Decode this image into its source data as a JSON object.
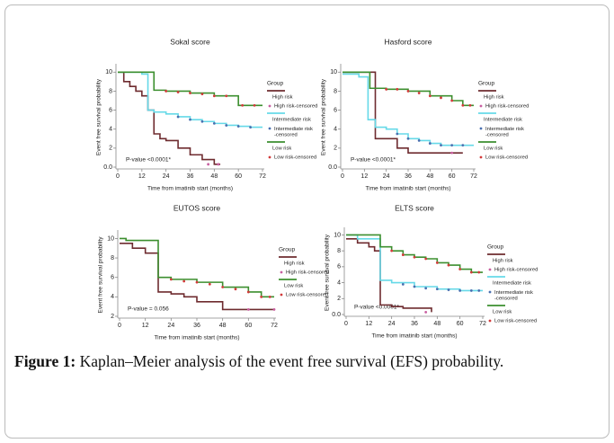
{
  "chart_data": [
    {
      "type": "line",
      "title": "Sokal score",
      "x_label": "Time from imatinib start (months)",
      "y_label": "Event free survival probability",
      "annotation": "P-value   <0.0001*",
      "legend_title": "Group",
      "xlim": [
        0,
        72
      ],
      "xticks": [
        0,
        12,
        24,
        36,
        48,
        60,
        72
      ],
      "ylim": [
        0,
        10.5
      ],
      "yticks": [
        {
          "value": 0,
          "label": "0.0"
        },
        2,
        4,
        6,
        8,
        10
      ],
      "series": [
        {
          "name": "High risk",
          "style": "step",
          "color": "#6e2b2f",
          "x": [
            0,
            3,
            6,
            9,
            12,
            15,
            18,
            21,
            24,
            30,
            36,
            42,
            48,
            51
          ],
          "values": [
            10,
            9,
            8.5,
            8,
            7.5,
            6,
            3.5,
            3,
            2.8,
            2,
            1.3,
            0.8,
            0.3,
            0.3
          ]
        },
        {
          "name": "High risk-censored",
          "style": "points",
          "color": "#c85ea0",
          "x": [
            45,
            50
          ],
          "values": [
            0.3,
            0.3
          ]
        },
        {
          "name": "Intermediate risk",
          "style": "step",
          "color": "#66d9e8",
          "x": [
            0,
            12,
            15,
            18,
            24,
            30,
            36,
            42,
            48,
            54,
            60,
            66,
            72
          ],
          "values": [
            10,
            9.8,
            6,
            5.8,
            5.6,
            5.3,
            5,
            4.8,
            4.6,
            4.4,
            4.3,
            4.2,
            4.2
          ]
        },
        {
          "name": "Intermediate risk\n-censored",
          "style": "points",
          "color": "#4a6fb0",
          "x": [
            30,
            36,
            42,
            48,
            54,
            60,
            66
          ],
          "values": [
            5.3,
            5,
            4.8,
            4.6,
            4.4,
            4.3,
            4.2
          ]
        },
        {
          "name": "Low risk",
          "style": "step",
          "color": "#3c8f2f",
          "x": [
            0,
            18,
            24,
            36,
            48,
            60,
            72
          ],
          "values": [
            10,
            8.1,
            8,
            7.8,
            7.5,
            6.5,
            6.5
          ]
        },
        {
          "name": "Low risk-censored",
          "style": "points",
          "color": "#d23a3a",
          "x": [
            24,
            30,
            36,
            42,
            48,
            54,
            62,
            68
          ],
          "values": [
            8,
            7.9,
            7.8,
            7.7,
            7.5,
            7.5,
            6.5,
            6.5
          ]
        }
      ]
    },
    {
      "type": "line",
      "title": "Hasford score",
      "x_label": "Time from imatinib start (months)",
      "y_label": "Event free survival probability",
      "annotation": "P-value <0.0001*",
      "legend_title": "Group",
      "xlim": [
        0,
        72
      ],
      "xticks": [
        0,
        12,
        24,
        36,
        48,
        60,
        72
      ],
      "ylim": [
        0,
        10.5
      ],
      "yticks": [
        {
          "value": 0,
          "label": "0.0"
        },
        2,
        4,
        6,
        8,
        10
      ],
      "series": [
        {
          "name": "High risk",
          "style": "step",
          "color": "#6e2b2f",
          "x": [
            0,
            15,
            18,
            24,
            30,
            36,
            66
          ],
          "values": [
            10,
            10,
            3,
            3,
            2,
            1.5,
            1.5
          ]
        },
        {
          "name": "High risk-censored",
          "style": "points",
          "color": "#c85ea0",
          "x": [
            60
          ],
          "values": [
            1.5
          ]
        },
        {
          "name": "Intermediate risk",
          "style": "step",
          "color": "#66d9e8",
          "x": [
            0,
            9,
            14,
            18,
            24,
            30,
            36,
            42,
            48,
            54,
            60,
            72
          ],
          "values": [
            9.8,
            9.5,
            5,
            4.2,
            4,
            3.5,
            3,
            2.8,
            2.5,
            2.3,
            2.3,
            2.3
          ]
        },
        {
          "name": "Intermediate risk\n-censored",
          "style": "points",
          "color": "#4a6fb0",
          "x": [
            30,
            36,
            42,
            48,
            54,
            60,
            66
          ],
          "values": [
            3.5,
            3,
            2.8,
            2.5,
            2.3,
            2.3,
            2.3
          ]
        },
        {
          "name": "Low risk",
          "style": "step",
          "color": "#3c8f2f",
          "x": [
            0,
            15,
            24,
            36,
            48,
            60,
            66,
            72
          ],
          "values": [
            10,
            8.3,
            8.2,
            8,
            7.5,
            7,
            6.5,
            6.5
          ]
        },
        {
          "name": "Low risk-censored",
          "style": "points",
          "color": "#d23a3a",
          "x": [
            24,
            30,
            36,
            42,
            48,
            54,
            60,
            66,
            70
          ],
          "values": [
            8.2,
            8.2,
            8,
            7.8,
            7.5,
            7.3,
            7,
            6.5,
            6.5
          ]
        }
      ]
    },
    {
      "type": "line",
      "title": "EUTOS score",
      "x_label": "Time from imatinib start (months)",
      "y_label": "Event free survival probability",
      "annotation": "P-value = 0.056",
      "legend_title": "Group",
      "xlim": [
        0,
        72
      ],
      "xticks": [
        0,
        12,
        24,
        36,
        48,
        60,
        72
      ],
      "ylim": [
        2,
        10.5
      ],
      "yticks": [
        2,
        4,
        6,
        8,
        10
      ],
      "series": [
        {
          "name": "High risk",
          "style": "step",
          "color": "#6e2b2f",
          "x": [
            0,
            6,
            12,
            18,
            24,
            30,
            36,
            48,
            72
          ],
          "values": [
            9.5,
            9,
            8.5,
            4.5,
            4.3,
            4,
            3.5,
            2.7,
            2.7
          ]
        },
        {
          "name": "High risk-censored",
          "style": "points",
          "color": "#c85ea0",
          "x": [
            60,
            72
          ],
          "values": [
            2.7,
            2.7
          ]
        },
        {
          "name": "Low risk",
          "style": "step",
          "color": "#3c8f2f",
          "x": [
            0,
            3,
            18,
            24,
            36,
            48,
            60,
            66,
            72
          ],
          "values": [
            10,
            9.8,
            6,
            5.8,
            5.5,
            5,
            4.5,
            4,
            4
          ]
        },
        {
          "name": "Low risk-censored",
          "style": "points",
          "color": "#d23a3a",
          "x": [
            24,
            30,
            36,
            42,
            48,
            54,
            60,
            66,
            70
          ],
          "values": [
            5.8,
            5.6,
            5.5,
            5.3,
            5,
            4.8,
            4.5,
            4,
            4
          ]
        }
      ]
    },
    {
      "type": "line",
      "title": "ELTS score",
      "x_label": "Time from imatinib start (months)",
      "y_label": "Event free survival probability",
      "annotation": "P-value <0.0001*",
      "legend_title": "Group",
      "xlim": [
        0,
        72
      ],
      "xticks": [
        0,
        12,
        24,
        36,
        48,
        60,
        72
      ],
      "ylim": [
        0,
        10.5
      ],
      "yticks": [
        {
          "value": 0,
          "label": "0.0"
        },
        2,
        4,
        6,
        8,
        10
      ],
      "series": [
        {
          "name": "High risk",
          "style": "step",
          "color": "#6e2b2f",
          "x": [
            0,
            6,
            12,
            15,
            18,
            24,
            30,
            45
          ],
          "values": [
            9.5,
            9,
            8.5,
            8,
            1.2,
            1,
            0.8,
            0.3
          ]
        },
        {
          "name": "High risk-censored",
          "style": "points",
          "color": "#c85ea0",
          "x": [
            42
          ],
          "values": [
            0.3
          ]
        },
        {
          "name": "Intermediate risk",
          "style": "step",
          "color": "#66d9e8",
          "x": [
            0,
            6,
            18,
            24,
            36,
            48,
            60,
            72
          ],
          "values": [
            10,
            9.5,
            4.3,
            4,
            3.5,
            3.2,
            3,
            3
          ]
        },
        {
          "name": "Intermediate risk\n-censored",
          "style": "points",
          "color": "#4a6fb0",
          "x": [
            30,
            36,
            42,
            48,
            54,
            60,
            66,
            70
          ],
          "values": [
            3.8,
            3.5,
            3.3,
            3.2,
            3.1,
            3,
            3,
            3
          ]
        },
        {
          "name": "Low risk",
          "style": "step",
          "color": "#3c8f2f",
          "x": [
            0,
            18,
            24,
            30,
            36,
            42,
            48,
            54,
            60,
            66,
            72
          ],
          "values": [
            10,
            8.5,
            8,
            7.5,
            7.2,
            7,
            6.5,
            6.2,
            5.7,
            5.3,
            5.3
          ]
        },
        {
          "name": "Low risk-censored",
          "style": "points",
          "color": "#d23a3a",
          "x": [
            24,
            30,
            36,
            42,
            48,
            54,
            60,
            66,
            70
          ],
          "values": [
            8,
            7.5,
            7.2,
            7,
            6.5,
            6.2,
            5.7,
            5.3,
            5.3
          ]
        }
      ]
    }
  ],
  "caption": {
    "label": "Figure 1:",
    "text": "Kaplan–Meier analysis of the event free survival (EFS) probability."
  }
}
